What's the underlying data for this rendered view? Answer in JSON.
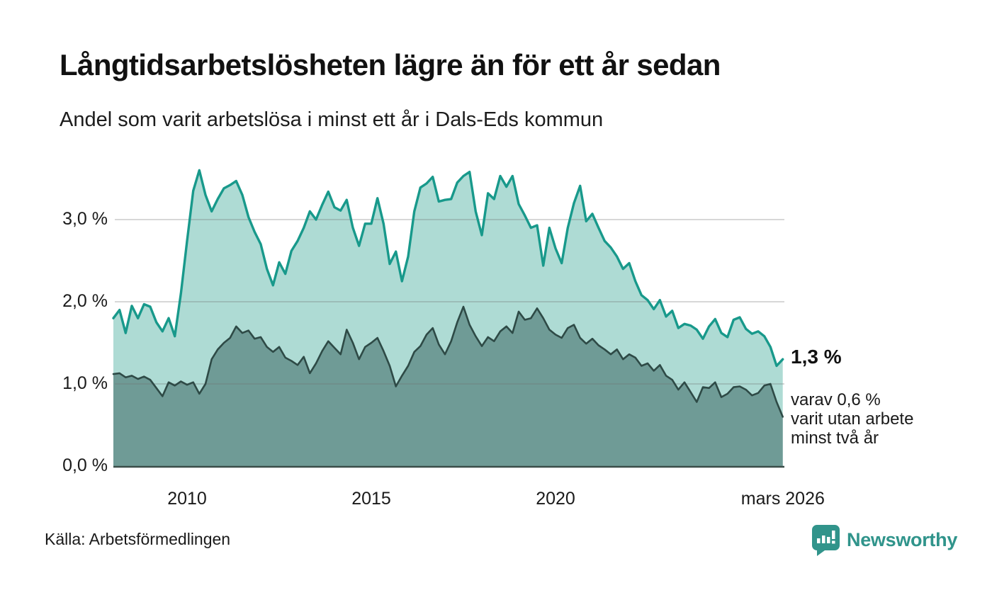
{
  "header": {
    "title": "Långtidsarbetslösheten lägre än för ett år sedan",
    "subtitle": "Andel som varit arbetslösa i minst ett år i Dals-Eds kommun"
  },
  "annotations": {
    "end_value": "1,3 %",
    "detail": "varav 0,6 %\nvarit utan arbete\nminst två år"
  },
  "footer": {
    "source": "Källa: Arbetsförmedlingen",
    "brand": "Newsworthy"
  },
  "chart_data": {
    "type": "area",
    "title": "Långtidsarbetslösheten lägre än för ett år sedan",
    "subtitle": "Andel som varit arbetslösa i minst ett år i Dals-Eds kommun",
    "unit": "%",
    "x_start_year": 2008,
    "points_per_year": 6,
    "grid": true,
    "grid_color": "#d9d9d9",
    "baseline_color": "#3a4d49",
    "y_axis": {
      "range": [
        0,
        3.75
      ],
      "ticks": [
        {
          "value": 0,
          "label": "0,0 %"
        },
        {
          "value": 1,
          "label": "1,0 %"
        },
        {
          "value": 2,
          "label": "2,0 %"
        },
        {
          "value": 3,
          "label": "3,0 %"
        }
      ]
    },
    "x_axis": {
      "ticks": [
        {
          "t": 2,
          "label": "2010"
        },
        {
          "t": 7,
          "label": "2015"
        },
        {
          "t": 12,
          "label": "2020"
        },
        {
          "t": 18.17,
          "label": "mars 2026"
        }
      ]
    },
    "series": [
      {
        "name": "Arbetslösa minst ett år",
        "end_label": "1,3 %",
        "line_color": "#18998b",
        "fill_color": "#aedbd4",
        "line_width": 3.4,
        "values": [
          1.8,
          1.9,
          1.62,
          1.95,
          1.8,
          1.97,
          1.94,
          1.75,
          1.64,
          1.8,
          1.58,
          2.1,
          2.74,
          3.35,
          3.6,
          3.3,
          3.1,
          3.25,
          3.38,
          3.42,
          3.47,
          3.3,
          3.03,
          2.85,
          2.7,
          2.4,
          2.2,
          2.48,
          2.34,
          2.62,
          2.74,
          2.9,
          3.1,
          3.0,
          3.18,
          3.34,
          3.15,
          3.11,
          3.24,
          2.9,
          2.68,
          2.95,
          2.95,
          3.26,
          2.95,
          2.46,
          2.61,
          2.25,
          2.55,
          3.1,
          3.39,
          3.44,
          3.52,
          3.22,
          3.24,
          3.25,
          3.45,
          3.53,
          3.58,
          3.1,
          2.81,
          3.32,
          3.25,
          3.53,
          3.4,
          3.53,
          3.19,
          3.05,
          2.9,
          2.93,
          2.44,
          2.9,
          2.65,
          2.47,
          2.9,
          3.2,
          3.41,
          2.98,
          3.07,
          2.9,
          2.74,
          2.66,
          2.55,
          2.4,
          2.47,
          2.25,
          2.08,
          2.02,
          1.91,
          2.02,
          1.82,
          1.89,
          1.68,
          1.73,
          1.71,
          1.66,
          1.55,
          1.7,
          1.79,
          1.62,
          1.57,
          1.78,
          1.81,
          1.67,
          1.61,
          1.64,
          1.58,
          1.45,
          1.22,
          1.3
        ]
      },
      {
        "name": "Arbetslösa minst två år",
        "end_label": "0,6 %",
        "line_color": "#2e4a46",
        "fill_color": "#6f9b96",
        "line_width": 2.6,
        "values": [
          1.12,
          1.13,
          1.08,
          1.1,
          1.06,
          1.09,
          1.05,
          0.95,
          0.85,
          1.02,
          0.98,
          1.03,
          0.99,
          1.02,
          0.88,
          1.0,
          1.3,
          1.42,
          1.5,
          1.56,
          1.7,
          1.62,
          1.65,
          1.55,
          1.57,
          1.45,
          1.39,
          1.45,
          1.32,
          1.28,
          1.23,
          1.33,
          1.13,
          1.25,
          1.4,
          1.52,
          1.44,
          1.36,
          1.66,
          1.5,
          1.3,
          1.45,
          1.5,
          1.56,
          1.4,
          1.22,
          0.97,
          1.1,
          1.22,
          1.39,
          1.46,
          1.6,
          1.68,
          1.48,
          1.36,
          1.52,
          1.75,
          1.94,
          1.72,
          1.58,
          1.46,
          1.57,
          1.52,
          1.64,
          1.7,
          1.62,
          1.88,
          1.78,
          1.8,
          1.92,
          1.8,
          1.66,
          1.6,
          1.56,
          1.68,
          1.72,
          1.56,
          1.49,
          1.55,
          1.47,
          1.42,
          1.36,
          1.42,
          1.3,
          1.36,
          1.32,
          1.22,
          1.25,
          1.16,
          1.23,
          1.1,
          1.05,
          0.93,
          1.02,
          0.9,
          0.78,
          0.96,
          0.95,
          1.02,
          0.84,
          0.88,
          0.96,
          0.97,
          0.93,
          0.86,
          0.89,
          0.98,
          1.0,
          0.78,
          0.6
        ]
      }
    ]
  }
}
